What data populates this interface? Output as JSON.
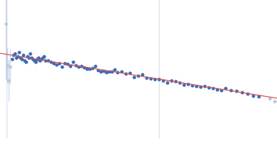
{
  "chart_data": {
    "type": "scatter",
    "xlim": [
      0,
      400
    ],
    "ylim": [
      0,
      200
    ],
    "vlines": [
      10,
      230
    ],
    "vline_color": "#ccd6e6",
    "fit": {
      "x": [
        0,
        400
      ],
      "y": [
        123,
        58
      ],
      "color": "#d9534f"
    },
    "series": [
      {
        "color": "#3b6cb7",
        "x": [
          18,
          20,
          22,
          24,
          26,
          28,
          30,
          32,
          34,
          36,
          38,
          40,
          42,
          44,
          46,
          48,
          50,
          52,
          54,
          56,
          58,
          60,
          62,
          64,
          66,
          70,
          74,
          78,
          82,
          86,
          90,
          94,
          98,
          102,
          106,
          110,
          114,
          118,
          122,
          126,
          130,
          134,
          138,
          142,
          146,
          150,
          154,
          158,
          162,
          166,
          170,
          176,
          182,
          188,
          194,
          200,
          206,
          212,
          218,
          224,
          230,
          236,
          242,
          248,
          254,
          260,
          266,
          272,
          278,
          284,
          290,
          296,
          302,
          308,
          314,
          320,
          326,
          334,
          342,
          350,
          358,
          366,
          374
        ],
        "values": [
          114,
          120,
          122,
          116,
          118,
          124,
          116,
          114,
          120,
          112,
          110,
          118,
          116,
          122,
          116,
          114,
          112,
          110,
          114,
          116,
          112,
          114,
          116,
          118,
          112,
          112,
          110,
          108,
          106,
          108,
          103,
          108,
          107,
          104,
          110,
          105,
          103,
          104,
          102,
          100,
          100,
          101,
          104,
          98,
          96,
          97,
          95,
          96,
          96,
          99,
          95,
          96,
          93,
          94,
          88,
          90,
          92,
          87,
          86,
          85,
          85,
          83,
          80,
          83,
          82,
          80,
          77,
          78,
          76,
          75,
          74,
          75,
          73,
          72,
          70,
          69,
          72,
          69,
          68,
          66,
          64,
          61,
          60
        ]
      },
      {
        "color": "#b9c9e2",
        "x": [
          9,
          11,
          13,
          15,
          390,
          397
        ],
        "values": [
          165,
          105,
          83,
          103,
          57,
          53
        ],
        "errors": [
          80,
          25,
          30,
          25,
          0,
          0
        ]
      }
    ]
  }
}
